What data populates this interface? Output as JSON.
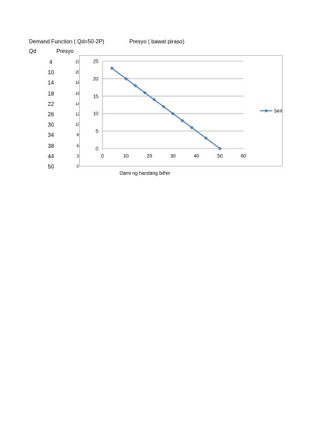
{
  "sheet": {
    "header_left": "Demand Function ( Qd=50-2P)",
    "header_right": "Presyo ( bawat piraso)",
    "col_qd": "Qd",
    "col_presyo": "Presyo",
    "qd_values": [
      "4",
      "10",
      "14",
      "18",
      "22",
      "26",
      "30",
      "34",
      "38",
      "44",
      "50"
    ],
    "presyo_values": [
      "23",
      "20",
      "18",
      "16",
      "14",
      "12",
      "10",
      "8",
      "6",
      "3",
      "0"
    ]
  },
  "colors": {
    "series": "#4a7ebb",
    "grid": "#a6a6a6",
    "border": "#bfbfbf"
  },
  "chart_data": {
    "type": "scatter",
    "title": "",
    "xlabel": "Dami ng handang bilhin",
    "ylabel": "",
    "xlim": [
      0,
      60
    ],
    "ylim": [
      0,
      25
    ],
    "x_ticks": [
      "0",
      "10",
      "20",
      "30",
      "40",
      "50",
      "60"
    ],
    "y_ticks": [
      "0",
      "5",
      "10",
      "15",
      "20",
      "25"
    ],
    "grid": "horizontal",
    "legend": "right",
    "series": [
      {
        "name": "Seri",
        "x": [
          4,
          10,
          14,
          18,
          22,
          26,
          30,
          34,
          38,
          44,
          50
        ],
        "y": [
          23,
          20,
          18,
          16,
          14,
          12,
          10,
          8,
          6,
          3,
          0
        ]
      }
    ]
  }
}
